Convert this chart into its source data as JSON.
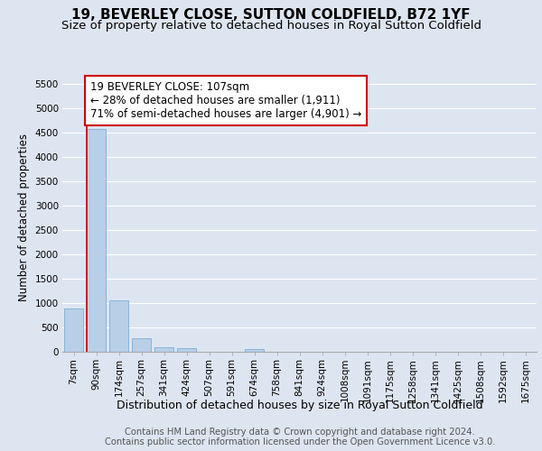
{
  "title1": "19, BEVERLEY CLOSE, SUTTON COLDFIELD, B72 1YF",
  "title2": "Size of property relative to detached houses in Royal Sutton Coldfield",
  "xlabel": "Distribution of detached houses by size in Royal Sutton Coldfield",
  "ylabel": "Number of detached properties",
  "footer1": "Contains HM Land Registry data © Crown copyright and database right 2024.",
  "footer2": "Contains public sector information licensed under the Open Government Licence v3.0.",
  "categories": [
    "7sqm",
    "90sqm",
    "174sqm",
    "257sqm",
    "341sqm",
    "424sqm",
    "507sqm",
    "591sqm",
    "674sqm",
    "758sqm",
    "841sqm",
    "924sqm",
    "1008sqm",
    "1091sqm",
    "1175sqm",
    "1258sqm",
    "1341sqm",
    "1425sqm",
    "1508sqm",
    "1592sqm",
    "1675sqm"
  ],
  "values": [
    880,
    4560,
    1060,
    280,
    100,
    80,
    0,
    0,
    50,
    0,
    0,
    0,
    0,
    0,
    0,
    0,
    0,
    0,
    0,
    0,
    0
  ],
  "bar_color": "#b8cfe8",
  "bar_edge_color": "#7aaed6",
  "property_line_x": 0.575,
  "property_line_color": "#cc0000",
  "annotation_text": "19 BEVERLEY CLOSE: 107sqm\n← 28% of detached houses are smaller (1,911)\n71% of semi-detached houses are larger (4,901) →",
  "annotation_box_facecolor": "#ffffff",
  "annotation_box_edgecolor": "#cc0000",
  "ylim_max": 5500,
  "yticks": [
    0,
    500,
    1000,
    1500,
    2000,
    2500,
    3000,
    3500,
    4000,
    4500,
    5000,
    5500
  ],
  "background_color": "#dde5f0",
  "grid_color": "#ffffff",
  "title1_fontsize": 11,
  "title2_fontsize": 9.5,
  "xlabel_fontsize": 9,
  "ylabel_fontsize": 8.5,
  "tick_fontsize": 7.5,
  "footer_fontsize": 7.2,
  "ann_fontsize": 8.5
}
